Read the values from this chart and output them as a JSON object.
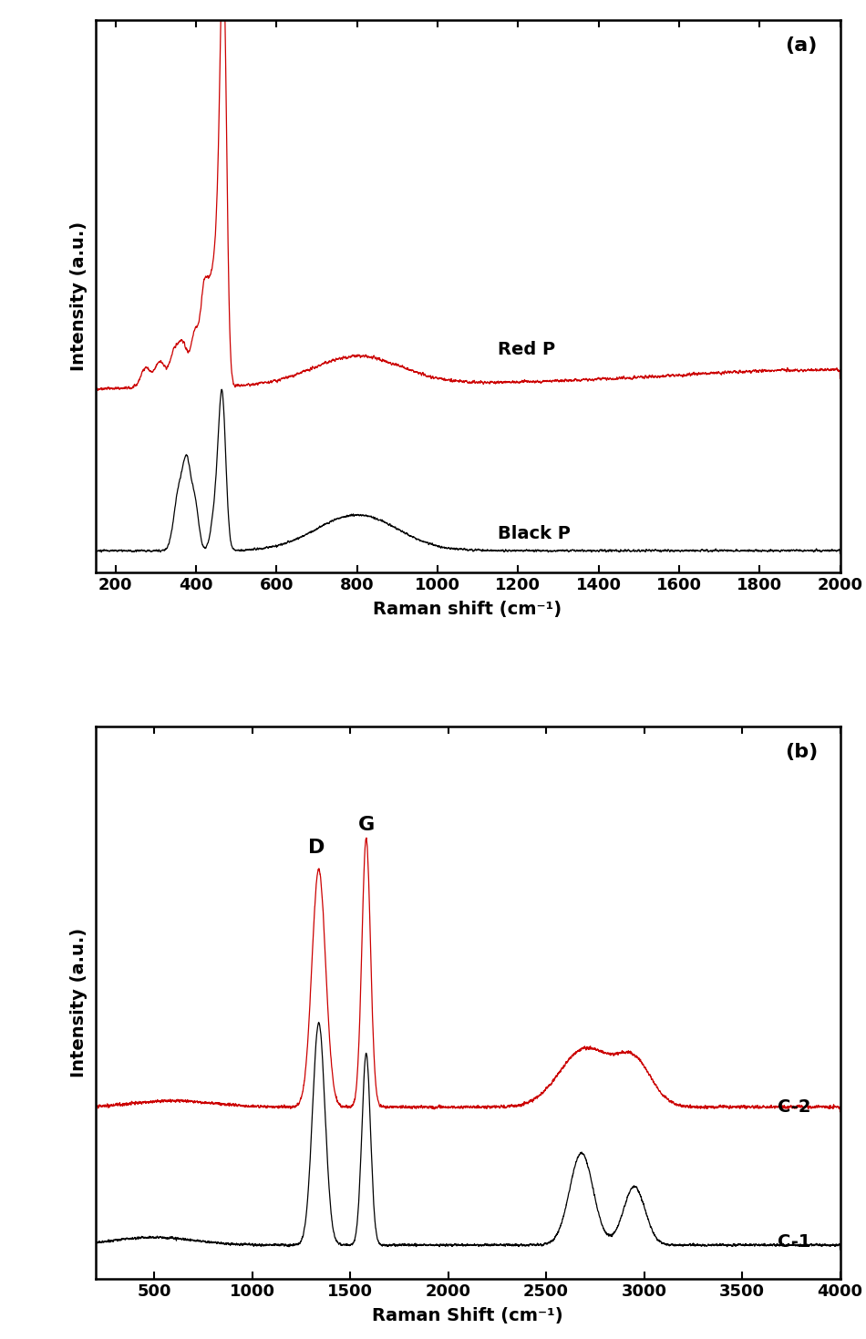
{
  "panel_a": {
    "x_range": [
      150,
      2000
    ],
    "x_ticks": [
      200,
      400,
      600,
      800,
      1000,
      1200,
      1400,
      1600,
      1800,
      2000
    ],
    "xlabel": "Raman shift (cm⁻¹)",
    "ylabel": "Intensity (a.u.)",
    "label_pos": "(a)",
    "red_p_label": "Red P",
    "black_p_label": "Black P",
    "red_color": "#cc0000",
    "black_color": "#000000"
  },
  "panel_b": {
    "x_range": [
      200,
      4000
    ],
    "x_ticks": [
      500,
      1000,
      1500,
      2000,
      2500,
      3000,
      3500,
      4000
    ],
    "xlabel": "Raman Shift (cm⁻¹)",
    "ylabel": "Intensity (a.u.)",
    "label_pos": "(b)",
    "c2_label": "C-2",
    "c1_label": "C-1",
    "D_label": "D",
    "G_label": "G",
    "red_color": "#cc0000",
    "black_color": "#000000"
  }
}
